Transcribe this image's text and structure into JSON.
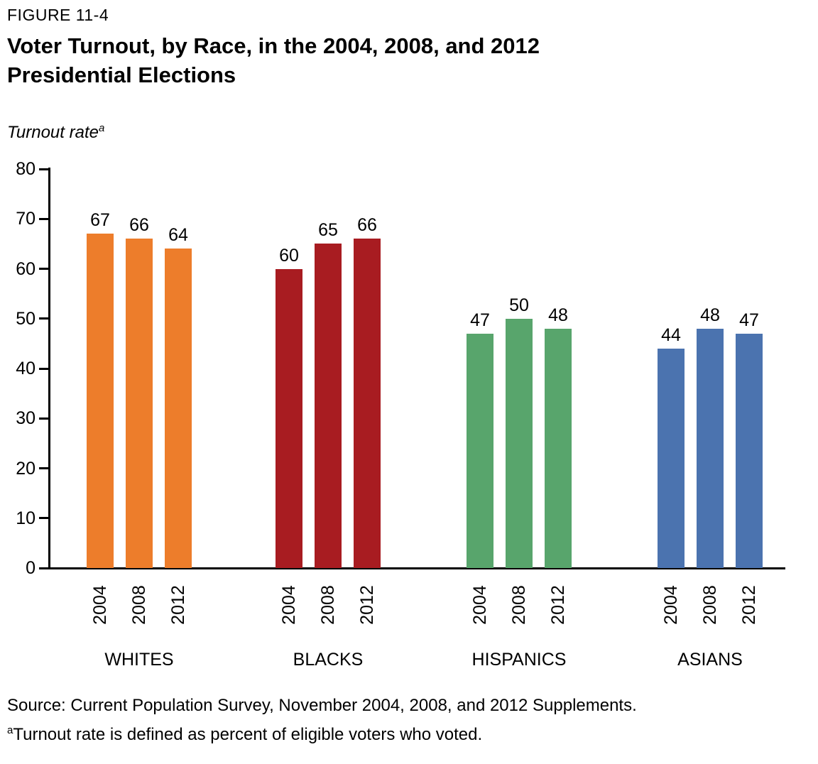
{
  "figure": {
    "label": "FIGURE 11-4",
    "title_line1": "Voter Turnout, by Race, in the 2004, 2008, and 2012",
    "title_line2": "Presidential Elections",
    "axis_label": "Turnout rate",
    "axis_label_superscript": "a"
  },
  "chart_data": {
    "type": "bar",
    "title": "Voter Turnout, by Race, in the 2004, 2008, and 2012 Presidential Elections",
    "ylabel": "Turnout rate",
    "xlabel": "",
    "ylim": [
      0,
      80
    ],
    "yticks": [
      0,
      10,
      20,
      30,
      40,
      50,
      60,
      70,
      80
    ],
    "grid": false,
    "legend": "none",
    "categories": [
      "2004",
      "2008",
      "2012"
    ],
    "groups": [
      {
        "name": "WHITES",
        "color": "#ED7D2B",
        "values": [
          67,
          66,
          64
        ]
      },
      {
        "name": "BLACKS",
        "color": "#A81C21",
        "values": [
          60,
          65,
          66
        ]
      },
      {
        "name": "HISPANICS",
        "color": "#58A56C",
        "values": [
          47,
          50,
          48
        ]
      },
      {
        "name": "ASIANS",
        "color": "#4B73AF",
        "values": [
          44,
          48,
          47
        ]
      }
    ]
  },
  "source": "Source: Current Population Survey, November 2004, 2008, and 2012 Supplements.",
  "footnote": {
    "marker": "a",
    "text": "Turnout rate is defined as percent of eligible voters who voted."
  }
}
